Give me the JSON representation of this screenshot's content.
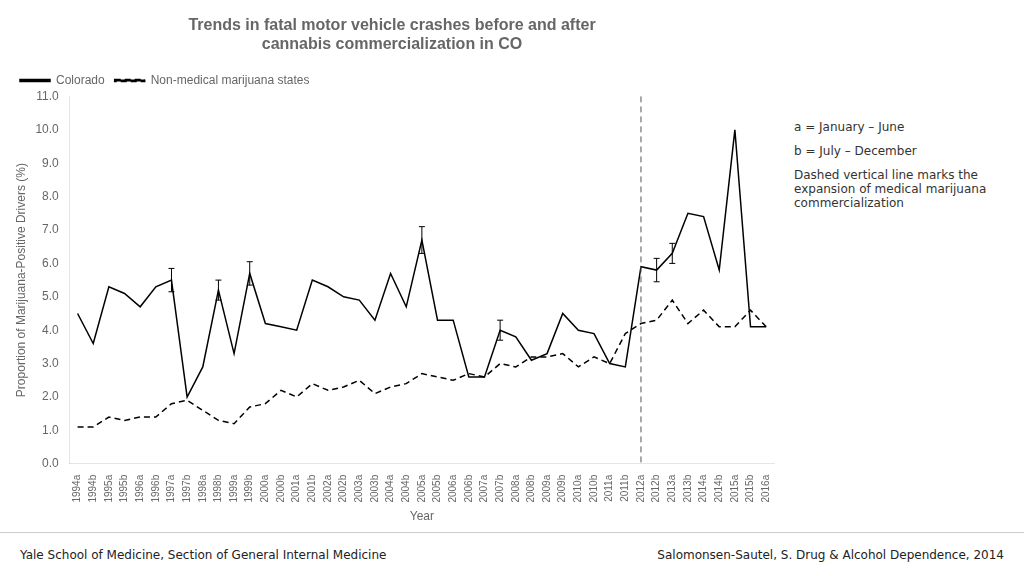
{
  "chart_data": {
    "type": "line",
    "title": [
      "Trends in fatal motor vehicle crashes before and after",
      "cannabis commercialization in CO"
    ],
    "xlabel": "Year",
    "ylabel": "Proportion of Marijuana-Positive Drivers (%)",
    "categories": [
      "1994a",
      "1994b",
      "1995a",
      "1995b",
      "1996a",
      "1996b",
      "1997a",
      "1997b",
      "1998a",
      "1998b",
      "1999a",
      "1999b",
      "2000a",
      "2000b",
      "2001a",
      "2001b",
      "2002a",
      "2002b",
      "2003a",
      "2003b",
      "2004a",
      "2004b",
      "2005a",
      "2005b",
      "2006a",
      "2006b",
      "2007a",
      "2007b",
      "2008a",
      "2008b",
      "2009a",
      "2009b",
      "2010a",
      "2010b",
      "2011a",
      "2011b",
      "2012a",
      "2012b",
      "2013a",
      "2013b",
      "2014a",
      "2014b",
      "2015a",
      "2015b",
      "2016a"
    ],
    "series": [
      {
        "name": "Colorado",
        "color": "#000000",
        "line_style": "solid",
        "values": [
          4.5,
          3.6,
          5.3,
          5.1,
          4.7,
          5.3,
          5.5,
          2.0,
          2.9,
          5.2,
          3.3,
          5.7,
          4.2,
          4.1,
          4.0,
          5.5,
          5.3,
          5.0,
          4.9,
          4.3,
          5.7,
          4.7,
          6.7,
          4.3,
          4.3,
          2.6,
          2.6,
          4.0,
          3.8,
          3.1,
          3.3,
          4.5,
          4.0,
          3.9,
          3.0,
          2.9,
          5.9,
          5.8,
          6.3,
          7.5,
          7.4,
          5.8,
          10.0,
          4.1,
          4.1
        ],
        "errors": [
          0.0,
          0.0,
          0.0,
          0.0,
          0.0,
          0.0,
          0.35,
          0.0,
          0.0,
          0.3,
          0.0,
          0.35,
          0.0,
          0.0,
          0.0,
          0.0,
          0.0,
          0.0,
          0.0,
          0.0,
          0.0,
          0.0,
          0.4,
          0.0,
          0.0,
          0.0,
          0.0,
          0.3,
          0.0,
          0.0,
          0.0,
          0.0,
          0.0,
          0.0,
          0.0,
          0.0,
          0.0,
          0.35,
          0.3,
          0.0,
          0.0,
          0.0,
          0.0,
          0.0,
          0.0
        ]
      },
      {
        "name": "Non-medical marijuana states",
        "color": "#000000",
        "line_style": "dashed",
        "values": [
          1.1,
          1.1,
          1.4,
          1.3,
          1.4,
          1.4,
          1.8,
          1.9,
          1.6,
          1.3,
          1.2,
          1.7,
          1.8,
          2.2,
          2.0,
          2.4,
          2.2,
          2.3,
          2.5,
          2.1,
          2.3,
          2.4,
          2.7,
          2.6,
          2.5,
          2.7,
          2.6,
          3.0,
          2.9,
          3.2,
          3.2,
          3.3,
          2.9,
          3.2,
          3.0,
          3.9,
          4.2,
          4.3,
          4.9,
          4.2,
          4.6,
          4.1,
          4.1,
          4.6,
          4.1
        ]
      }
    ],
    "ylim": [
      0.0,
      11.0
    ],
    "yticks": [
      {
        "value": 0,
        "label": "0.0"
      },
      {
        "value": 1,
        "label": "1.0"
      },
      {
        "value": 2,
        "label": "2.0"
      },
      {
        "value": 3,
        "label": "3.0"
      },
      {
        "value": 4,
        "label": "4.0"
      },
      {
        "value": 5,
        "label": "5.0"
      },
      {
        "value": 6,
        "label": "6.0"
      },
      {
        "value": 7,
        "label": "7.0"
      },
      {
        "value": 8,
        "label": "8.0"
      },
      {
        "value": 9,
        "label": "9.0"
      },
      {
        "value": 10,
        "label": "10.0"
      },
      {
        "value": 11,
        "label": "11.0"
      }
    ],
    "vline": {
      "x": "2012a",
      "line_style": "dashed"
    },
    "annotations": [
      "a = January – June",
      "b = July – December",
      "Dashed vertical line marks the\nexpansion of medical marijuana\ncommercialization"
    ],
    "source": [
      "Yale School of Medicine, Section of General Internal Medicine",
      "Salomonsen-Sautel, S. Drug & Alcohol Dependence, 2014"
    ],
    "grid": false,
    "legend": "top left"
  }
}
